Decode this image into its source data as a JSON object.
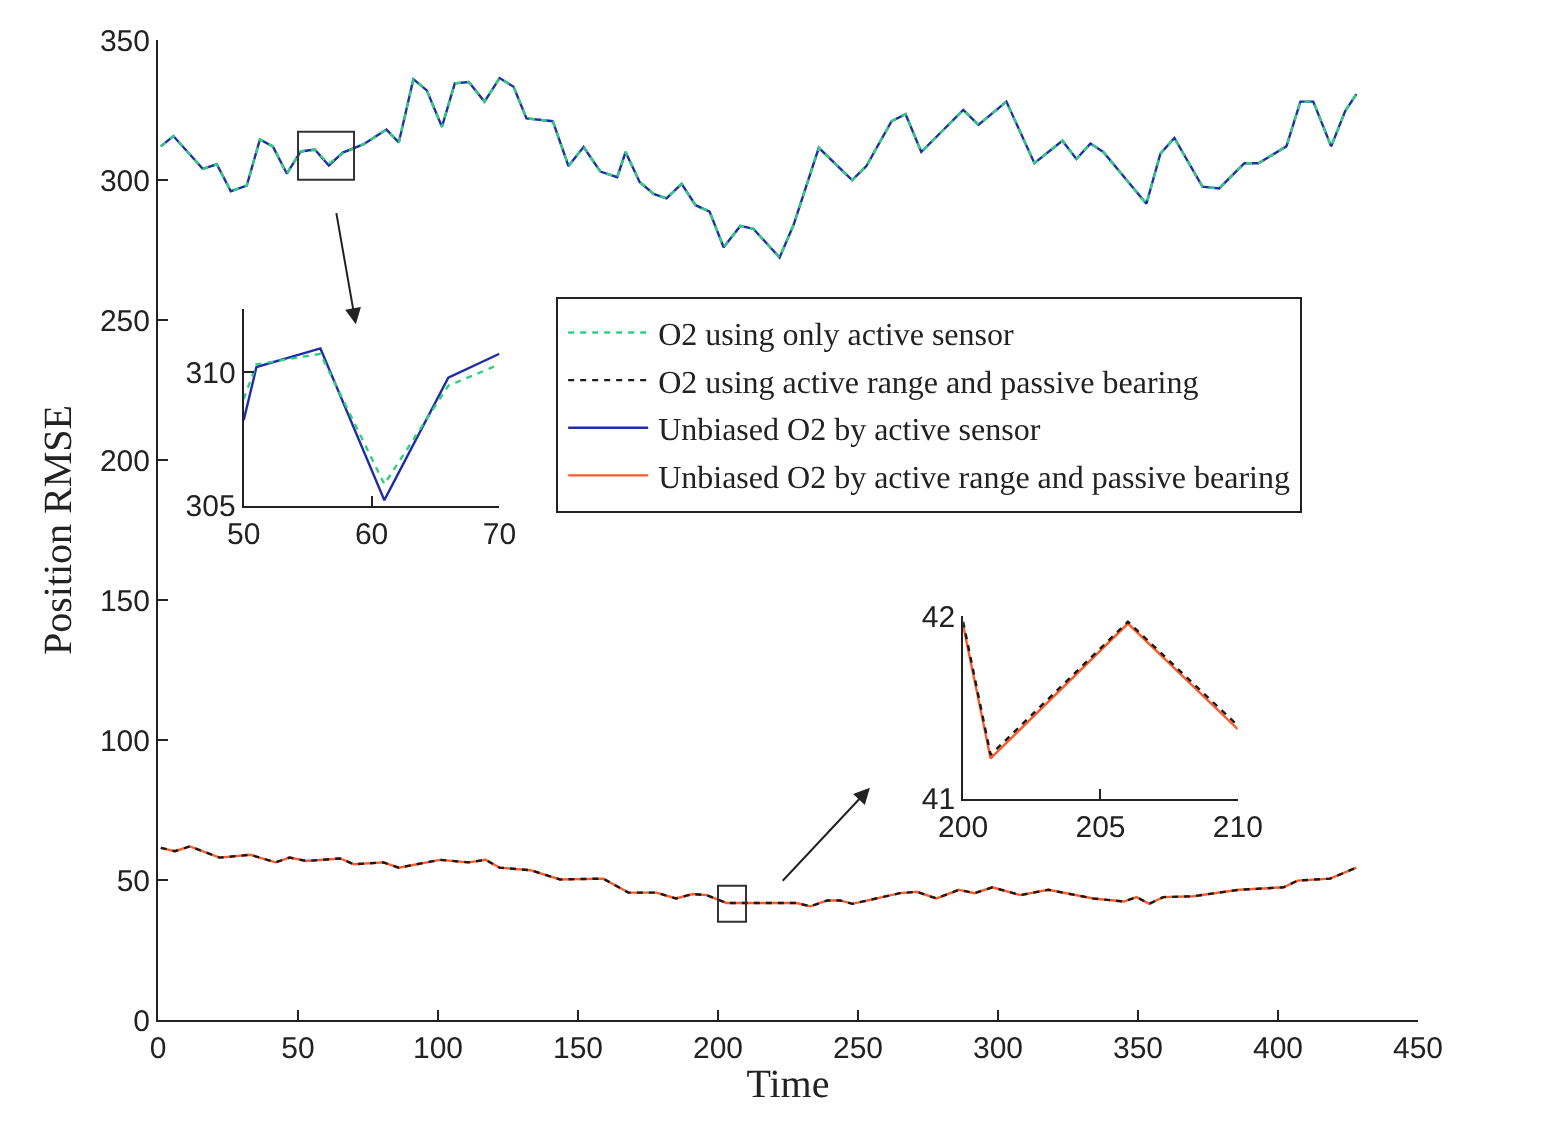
{
  "chart_data": [
    {
      "type": "line",
      "xlabel": "Time",
      "ylabel": "Position RMSE",
      "xlim": [
        0,
        450
      ],
      "ylim": [
        0,
        350
      ],
      "xticks": [
        0,
        50,
        100,
        150,
        200,
        250,
        300,
        350,
        400,
        450
      ],
      "yticks": [
        0,
        50,
        100,
        150,
        200,
        250,
        300,
        350
      ],
      "legend": "top right",
      "marker": "none",
      "series": [
        {
          "name": "O2 using only active sensor",
          "color": "#2fcf7f",
          "line_style": "dotted",
          "x": [
            1,
            5.5,
            16,
            21,
            26,
            31.7,
            36.4,
            41,
            46,
            51,
            56,
            61,
            66,
            73.3,
            81.6,
            86,
            91.2,
            96,
            101.4,
            106,
            111,
            116.6,
            122,
            127,
            131.6,
            141,
            146.6,
            152,
            158,
            164,
            167,
            172,
            177,
            181.6,
            187,
            192,
            197,
            202,
            208,
            212.6,
            222,
            227,
            236,
            247.9,
            253,
            262,
            267,
            272.6,
            287.6,
            293,
            303,
            313,
            323,
            328,
            333,
            337.6,
            353,
            358,
            363,
            373,
            379,
            388,
            393,
            403,
            408,
            412.6,
            419,
            424,
            428
          ],
          "values": [
            312,
            315.7,
            304,
            305.6,
            296,
            298,
            314.5,
            312,
            302.3,
            310.3,
            310.7,
            305.8,
            309.5,
            312.7,
            318,
            313.4,
            336,
            332,
            319,
            334.5,
            335,
            328,
            336.4,
            333.3,
            322,
            321,
            305,
            311.8,
            303,
            301,
            310,
            299.3,
            295,
            293.4,
            298.6,
            291,
            288.7,
            276,
            283.6,
            282.6,
            272.3,
            284,
            311.5,
            300,
            305,
            321,
            323.5,
            310,
            325,
            319.7,
            328,
            306,
            314,
            307.5,
            313,
            310,
            291.5,
            309.4,
            315,
            297.6,
            297,
            306,
            306,
            312,
            328,
            328,
            312,
            324.6,
            330.7
          ]
        },
        {
          "name": "O2 using active range and passive bearing",
          "color": "#1a1a1a",
          "line_style": "dotted",
          "x": [
            1,
            6,
            11.4,
            22,
            33,
            42,
            47,
            53,
            65,
            70,
            80.5,
            86,
            100.7,
            111,
            117,
            122,
            133,
            143.6,
            159,
            168,
            178,
            185,
            191,
            196,
            203,
            212.6,
            228,
            233,
            239,
            243.6,
            248,
            265,
            271,
            278,
            286,
            291.6,
            298,
            308,
            318,
            334,
            345,
            349.5,
            354,
            359,
            369.8,
            386,
            402,
            407,
            418.6,
            428
          ],
          "values": [
            61.5,
            60.3,
            62,
            58,
            59,
            56.3,
            58,
            56.8,
            57.7,
            55.6,
            56.3,
            54.4,
            57.2,
            56.3,
            57.2,
            54.4,
            53.5,
            50.2,
            50.5,
            45.5,
            45.5,
            43.4,
            45,
            44.6,
            41.8,
            41.8,
            41.8,
            40.6,
            42.7,
            42.7,
            41.5,
            45.3,
            45.8,
            43.4,
            46.5,
            45.3,
            47.4,
            44.6,
            46.5,
            43.4,
            42.3,
            43.9,
            41.5,
            43.9,
            44.2,
            46.5,
            47.4,
            49.8,
            50.5,
            54.4
          ]
        },
        {
          "name": "Unbiased O2 by active sensor",
          "color": "#1f2ea8",
          "line_style": "solid",
          "x": [
            1,
            5.5,
            16,
            21,
            26,
            31.7,
            36.4,
            41,
            46,
            51,
            56,
            61,
            66,
            73.3,
            81.6,
            86,
            91.2,
            96,
            101.4,
            106,
            111,
            116.6,
            122,
            127,
            131.6,
            141,
            146.6,
            152,
            158,
            164,
            167,
            172,
            177,
            181.6,
            187,
            192,
            197,
            202,
            208,
            212.6,
            222,
            227,
            236,
            247.9,
            253,
            262,
            267,
            272.6,
            287.6,
            293,
            303,
            313,
            323,
            328,
            333,
            337.6,
            353,
            358,
            363,
            373,
            379,
            388,
            393,
            403,
            408,
            412.6,
            419,
            424,
            428
          ],
          "values": [
            312,
            315.7,
            304,
            305.6,
            296,
            298,
            314.5,
            312,
            302.3,
            310.2,
            310.9,
            305.2,
            309.8,
            312.7,
            318,
            313.4,
            336,
            332,
            319,
            334.5,
            335,
            328,
            336.4,
            333.3,
            322,
            321,
            305,
            311.8,
            303,
            301,
            310,
            299.3,
            295,
            293.4,
            298.6,
            291,
            288.7,
            276,
            283.6,
            282.6,
            272.3,
            284,
            311.5,
            300,
            305,
            321,
            323.5,
            310,
            325,
            319.7,
            328,
            306,
            314,
            307.5,
            313,
            310,
            291.5,
            309.4,
            315,
            297.6,
            297,
            306,
            306,
            312,
            328,
            328,
            312,
            324.6,
            330.7
          ]
        },
        {
          "name": "Unbiased O2 by active range and passive bearing",
          "color": "#ff5a2a",
          "line_style": "solid",
          "x": [
            1,
            6,
            11.4,
            22,
            33,
            42,
            47,
            53,
            65,
            70,
            80.5,
            86,
            100.7,
            111,
            117,
            122,
            133,
            143.6,
            159,
            168,
            178,
            185,
            191,
            196,
            203,
            212.6,
            228,
            233,
            239,
            243.6,
            248,
            265,
            271,
            278,
            286,
            291.6,
            298,
            308,
            318,
            334,
            345,
            349.5,
            354,
            359,
            369.8,
            386,
            402,
            407,
            418.6,
            428
          ],
          "values": [
            61.5,
            60.3,
            62,
            58,
            59,
            56.3,
            58,
            56.8,
            57.7,
            55.6,
            56.3,
            54.4,
            57.2,
            56.3,
            57.2,
            54.4,
            53.5,
            50.2,
            50.5,
            45.5,
            45.5,
            43.4,
            45,
            44.6,
            41.8,
            41.8,
            41.8,
            40.6,
            42.7,
            42.7,
            41.5,
            45.3,
            45.8,
            43.4,
            46.5,
            45.3,
            47.4,
            44.6,
            46.5,
            43.4,
            42.3,
            43.9,
            41.5,
            43.9,
            44.2,
            46.5,
            47.4,
            49.8,
            50.5,
            54.4
          ]
        }
      ]
    },
    {
      "type": "line",
      "xlim": [
        50,
        70
      ],
      "ylim": [
        305,
        312.4
      ],
      "xticks": [
        50,
        60,
        70
      ],
      "yticks": [
        305,
        310
      ],
      "legend": false,
      "marker": "none",
      "series": [
        {
          "color": "#2fcf7f",
          "line_style": "dotted",
          "x": [
            50,
            51,
            56,
            61,
            66,
            70
          ],
          "values": [
            309,
            310.3,
            310.7,
            305.8,
            309.5,
            310.3
          ]
        },
        {
          "color": "#1f2ea8",
          "line_style": "solid",
          "x": [
            50,
            51,
            56,
            61,
            66,
            70
          ],
          "values": [
            308.2,
            310.2,
            310.9,
            305.2,
            309.8,
            310.7
          ]
        }
      ]
    },
    {
      "type": "line",
      "xlim": [
        200,
        210
      ],
      "ylim": [
        41,
        42
      ],
      "xticks": [
        200,
        205,
        210
      ],
      "yticks": [
        41,
        42
      ],
      "legend": false,
      "marker": "none",
      "series": [
        {
          "color": "#1a1a1a",
          "line_style": "dotted",
          "x": [
            200,
            201,
            206,
            210
          ],
          "values": [
            41.97,
            41.24,
            41.97,
            41.4
          ]
        },
        {
          "color": "#ff5a2a",
          "line_style": "solid",
          "x": [
            200,
            201,
            206,
            210
          ],
          "values": [
            41.95,
            41.22,
            41.96,
            41.38
          ]
        }
      ]
    }
  ]
}
